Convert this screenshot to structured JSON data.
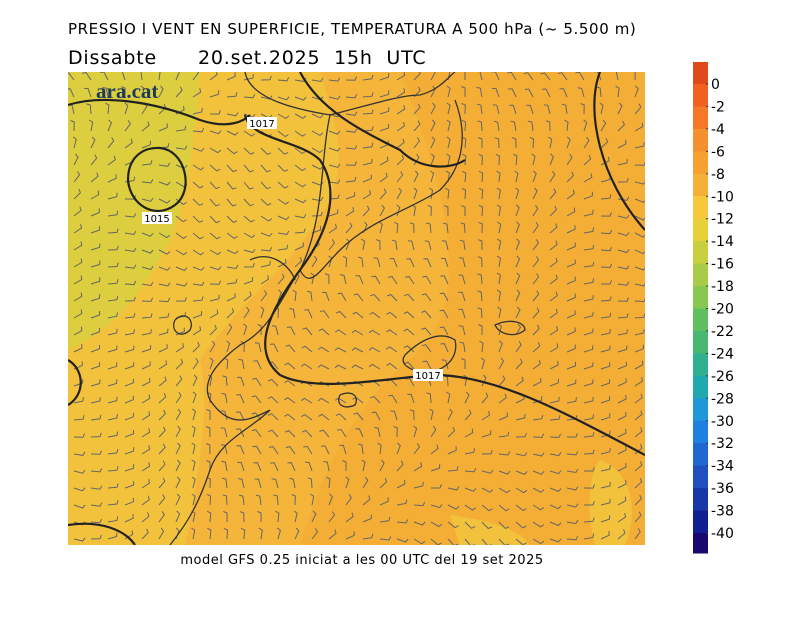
{
  "header": {
    "title": "PRESSIO I VENT EN SUPERFICIE, TEMPERATURA A 500 hPa (~ 5.500 m)",
    "day": "Dissabte",
    "date": "20.set.2025  15h  UTC"
  },
  "logo": "ara.cat",
  "isobar_labels": [
    "1017",
    "1015",
    "1017"
  ],
  "footer": "model GFS 0.25 iniciat a les 00 UTC del 19 set 2025",
  "colorbar": {
    "ticks": [
      0,
      -2,
      -4,
      -6,
      -8,
      -10,
      -12,
      -14,
      -16,
      -18,
      -20,
      -22,
      -24,
      -26,
      -28,
      -30,
      -32,
      -34,
      -36,
      -38,
      -40
    ],
    "colors": [
      "#e04a1a",
      "#f06020",
      "#f57828",
      "#f59030",
      "#f5a030",
      "#f5b03a",
      "#f8c83c",
      "#e8d038",
      "#c8d040",
      "#a8cc48",
      "#88c850",
      "#60c060",
      "#48b870",
      "#30b090",
      "#20a8b0",
      "#2098d8",
      "#2080e0",
      "#2068d0",
      "#2050c0",
      "#1838a8",
      "#102090",
      "#180870"
    ]
  }
}
